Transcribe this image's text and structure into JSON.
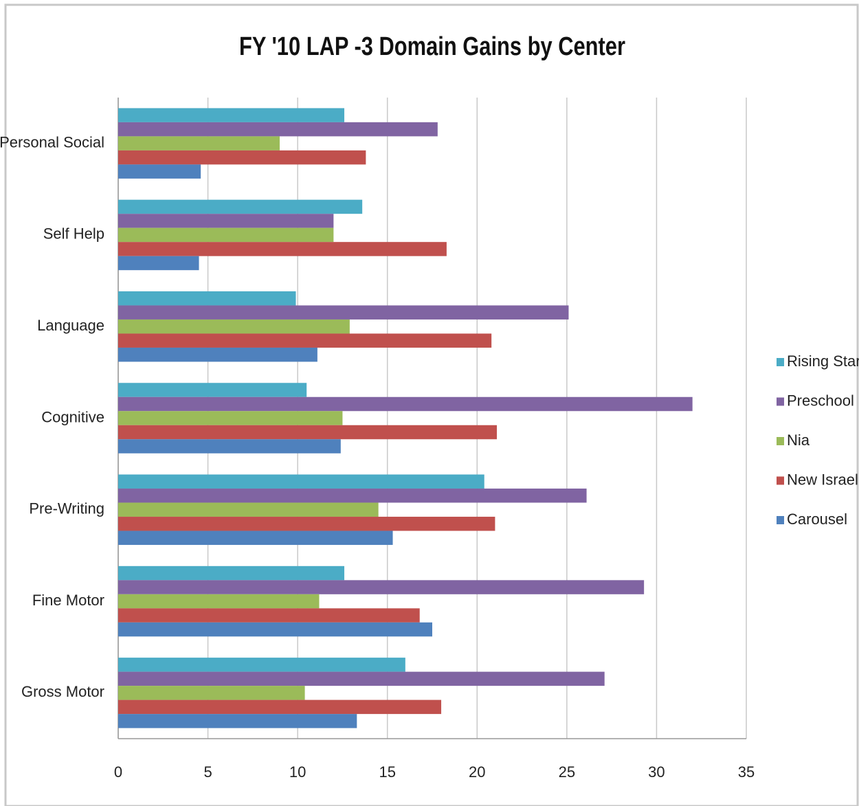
{
  "chart_data": {
    "type": "hbar",
    "title": "FY '10 LAP -3 Domain Gains by Center",
    "categories": [
      "Personal Social",
      "Self Help",
      "Language",
      "Cognitive",
      "Pre-Writing",
      "Fine Motor",
      "Gross Motor"
    ],
    "series": [
      {
        "name": "Rising Star",
        "color": "#4bacc6",
        "values": [
          12.6,
          13.6,
          9.9,
          10.5,
          20.4,
          12.6,
          16.0
        ]
      },
      {
        "name": "Preschool",
        "color": "#8064a2",
        "values": [
          17.8,
          12,
          25.1,
          32,
          26.1,
          29.3,
          27.1
        ]
      },
      {
        "name": "Nia",
        "color": "#9bbb59",
        "values": [
          9,
          12,
          12.9,
          12.5,
          14.5,
          11.2,
          10.4
        ]
      },
      {
        "name": "New Israel",
        "color": "#c0504d",
        "values": [
          13.8,
          18.3,
          20.8,
          21.1,
          21,
          16.8,
          18.0
        ]
      },
      {
        "name": "Carousel",
        "color": "#4f81bd",
        "values": [
          4.6,
          4.5,
          11.1,
          12.4,
          15.3,
          17.5,
          13.3
        ]
      }
    ],
    "xlim": [
      0,
      35
    ],
    "xticks": [
      0,
      5,
      10,
      15,
      20,
      25,
      30,
      35
    ],
    "grid": true,
    "legend": "right"
  }
}
